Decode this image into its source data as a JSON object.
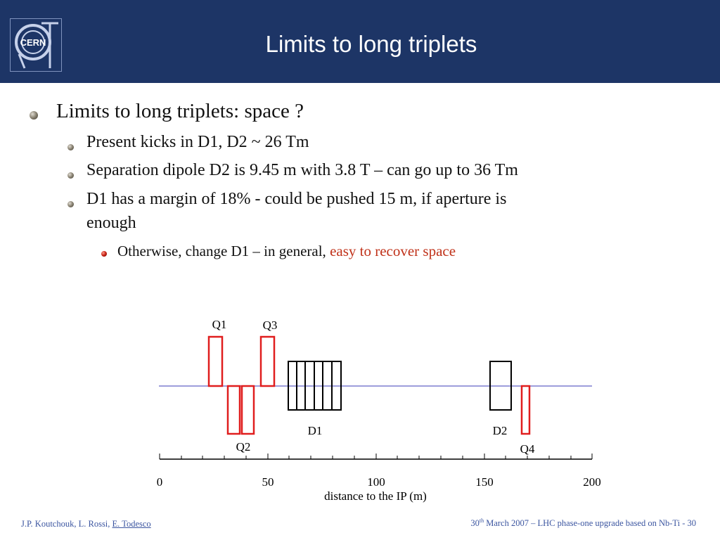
{
  "slide": {
    "title": "Limits to long triplets",
    "logo_text": "CERN"
  },
  "bullets": {
    "b1": "Limits to long triplets: space ?",
    "b1_1": "Present kicks in D1, D2 ~ 26 Tm",
    "b1_2": "Separation dipole D2 is 9.45 m with 3.8 T – can go up to 36 Tm",
    "b1_3_line1": "D1 has a margin of 18% - could be pushed 15 m, if aperture is",
    "b1_3_line2": "enough",
    "b1_3_1_prefix": "Otherwise, change D1 – in general,",
    "b1_3_1_highlight": "easy to recover space"
  },
  "diagram": {
    "xlabel": "distance to the IP (m)",
    "ticks": [
      "0",
      "50",
      "100",
      "150",
      "200"
    ],
    "labels": {
      "q1": "Q1",
      "q2": "Q2",
      "q3": "Q3",
      "q4": "Q4",
      "d1": "D1",
      "d2": "D2"
    },
    "colors": {
      "quadrupole": "#e01e1e",
      "dipole": "#000000",
      "beam_line": "#3b3bb8"
    }
  },
  "footer": {
    "authors_prefix": "J.P. Koutchouk, L. Rossi,",
    "authors_link": "E. Todesco",
    "date_day": "30",
    "date_sup": "th",
    "date_rest": " March 2007 – LHC phase-one upgrade based on Nb-Ti",
    "page": " - 30"
  }
}
